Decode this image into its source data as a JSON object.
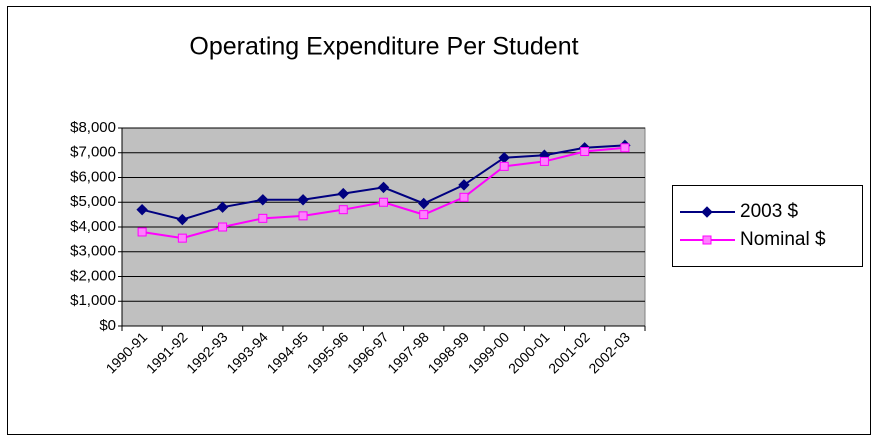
{
  "chart_data": {
    "type": "line",
    "title": "Operating Expenditure Per Student",
    "categories": [
      "1990-91",
      "1991-92",
      "1992-93",
      "1993-94",
      "1994-95",
      "1995-96",
      "1996-97",
      "1997-98",
      "1998-99",
      "1999-00",
      "2000-01",
      "2001-02",
      "2002-03"
    ],
    "series": [
      {
        "name": "2003 $",
        "color": "#000080",
        "marker": "diamond",
        "values": [
          4700,
          4300,
          4800,
          5100,
          5100,
          5350,
          5600,
          4950,
          5700,
          6800,
          6900,
          7200,
          7300
        ]
      },
      {
        "name": "Nominal $",
        "color": "#ff00ff",
        "marker": "square",
        "values": [
          3800,
          3550,
          4000,
          4350,
          4450,
          4700,
          5000,
          4500,
          5200,
          6450,
          6650,
          7050,
          7200
        ]
      }
    ],
    "ylim": [
      0,
      8000
    ],
    "yticks": [
      {
        "value": 0,
        "label": "$0"
      },
      {
        "value": 1000,
        "label": "$1,000"
      },
      {
        "value": 2000,
        "label": "$2,000"
      },
      {
        "value": 3000,
        "label": "$3,000"
      },
      {
        "value": 4000,
        "label": "$4,000"
      },
      {
        "value": 5000,
        "label": "$5,000"
      },
      {
        "value": 6000,
        "label": "$6,000"
      },
      {
        "value": 7000,
        "label": "$7,000"
      },
      {
        "value": 8000,
        "label": "$8,000"
      }
    ],
    "grid": true,
    "plot_background": "#c0c0c0",
    "legend": "right"
  }
}
